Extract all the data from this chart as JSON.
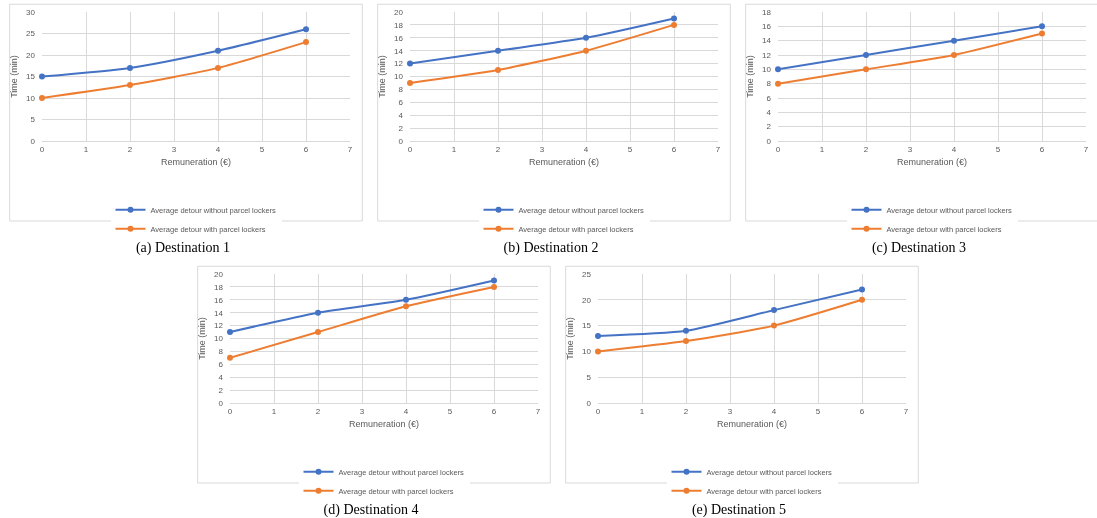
{
  "chart_data": [
    {
      "type": "line",
      "title": "(a) Destination 1",
      "xlabel": "Remuneration (€)",
      "ylabel": "Time (min)",
      "x": [
        0,
        2,
        4,
        6
      ],
      "xlim": [
        0,
        7
      ],
      "xticks": [
        0,
        1,
        2,
        3,
        4,
        5,
        6,
        7
      ],
      "ylim": [
        0,
        30
      ],
      "yticks": [
        0,
        5,
        10,
        15,
        20,
        25,
        30
      ],
      "grid": true,
      "legend": "bottom",
      "marker": "circle",
      "series": [
        {
          "name": "Average detour without parcel lockers",
          "color": "#4472c4",
          "values": [
            15,
            17,
            21,
            26
          ]
        },
        {
          "name": "Average detour with parcel lockers",
          "color": "#ed7d31",
          "values": [
            10,
            13,
            17,
            23
          ]
        }
      ]
    },
    {
      "type": "line",
      "title": "(b) Destination 2",
      "xlabel": "Remuneration (€)",
      "ylabel": "Time (min)",
      "x": [
        0,
        2,
        4,
        6
      ],
      "xlim": [
        0,
        7
      ],
      "xticks": [
        0,
        1,
        2,
        3,
        4,
        5,
        6,
        7
      ],
      "ylim": [
        0,
        20
      ],
      "yticks": [
        0,
        2,
        4,
        6,
        8,
        10,
        12,
        14,
        16,
        18,
        20
      ],
      "grid": true,
      "legend": "bottom",
      "marker": "circle",
      "series": [
        {
          "name": "Average detour without parcel lockers",
          "color": "#4472c4",
          "values": [
            12,
            14,
            16,
            19
          ]
        },
        {
          "name": "Average detour with parcel lockers",
          "color": "#ed7d31",
          "values": [
            9,
            11,
            14,
            18
          ]
        }
      ]
    },
    {
      "type": "line",
      "title": "(c) Destination 3",
      "xlabel": "Remuneration (€)",
      "ylabel": "Time (min)",
      "x": [
        0,
        2,
        4,
        6
      ],
      "xlim": [
        0,
        7
      ],
      "xticks": [
        0,
        1,
        2,
        3,
        4,
        5,
        6,
        7
      ],
      "ylim": [
        0,
        18
      ],
      "yticks": [
        0,
        2,
        4,
        6,
        8,
        10,
        12,
        14,
        16,
        18
      ],
      "grid": true,
      "legend": "bottom",
      "marker": "circle",
      "series": [
        {
          "name": "Average detour without parcel lockers",
          "color": "#4472c4",
          "values": [
            10,
            12,
            14,
            16
          ]
        },
        {
          "name": "Average detour with parcel lockers",
          "color": "#ed7d31",
          "values": [
            8,
            10,
            12,
            15
          ]
        }
      ]
    },
    {
      "type": "line",
      "title": "(d) Destination 4",
      "xlabel": "Remuneration (€)",
      "ylabel": "Time (min)",
      "x": [
        0,
        2,
        4,
        6
      ],
      "xlim": [
        0,
        7
      ],
      "xticks": [
        0,
        1,
        2,
        3,
        4,
        5,
        6,
        7
      ],
      "ylim": [
        0,
        20
      ],
      "yticks": [
        0,
        2,
        4,
        6,
        8,
        10,
        12,
        14,
        16,
        18,
        20
      ],
      "grid": true,
      "legend": "bottom",
      "marker": "circle",
      "series": [
        {
          "name": "Average detour without parcel lockers",
          "color": "#4472c4",
          "values": [
            11,
            14,
            16,
            19
          ]
        },
        {
          "name": "Average detour with parcel lockers",
          "color": "#ed7d31",
          "values": [
            7,
            11,
            15,
            18
          ]
        }
      ]
    },
    {
      "type": "line",
      "title": "(e) Destination 5",
      "xlabel": "Remuneration (€)",
      "ylabel": "Time (min)",
      "x": [
        0,
        2,
        4,
        6
      ],
      "xlim": [
        0,
        7
      ],
      "xticks": [
        0,
        1,
        2,
        3,
        4,
        5,
        6,
        7
      ],
      "ylim": [
        0,
        25
      ],
      "yticks": [
        0,
        5,
        10,
        15,
        20,
        25
      ],
      "grid": true,
      "legend": "bottom",
      "marker": "circle",
      "series": [
        {
          "name": "Average detour without parcel lockers",
          "color": "#4472c4",
          "values": [
            13,
            14,
            18,
            22
          ]
        },
        {
          "name": "Average detour with parcel lockers",
          "color": "#ed7d31",
          "values": [
            10,
            12,
            15,
            20
          ]
        }
      ]
    }
  ]
}
